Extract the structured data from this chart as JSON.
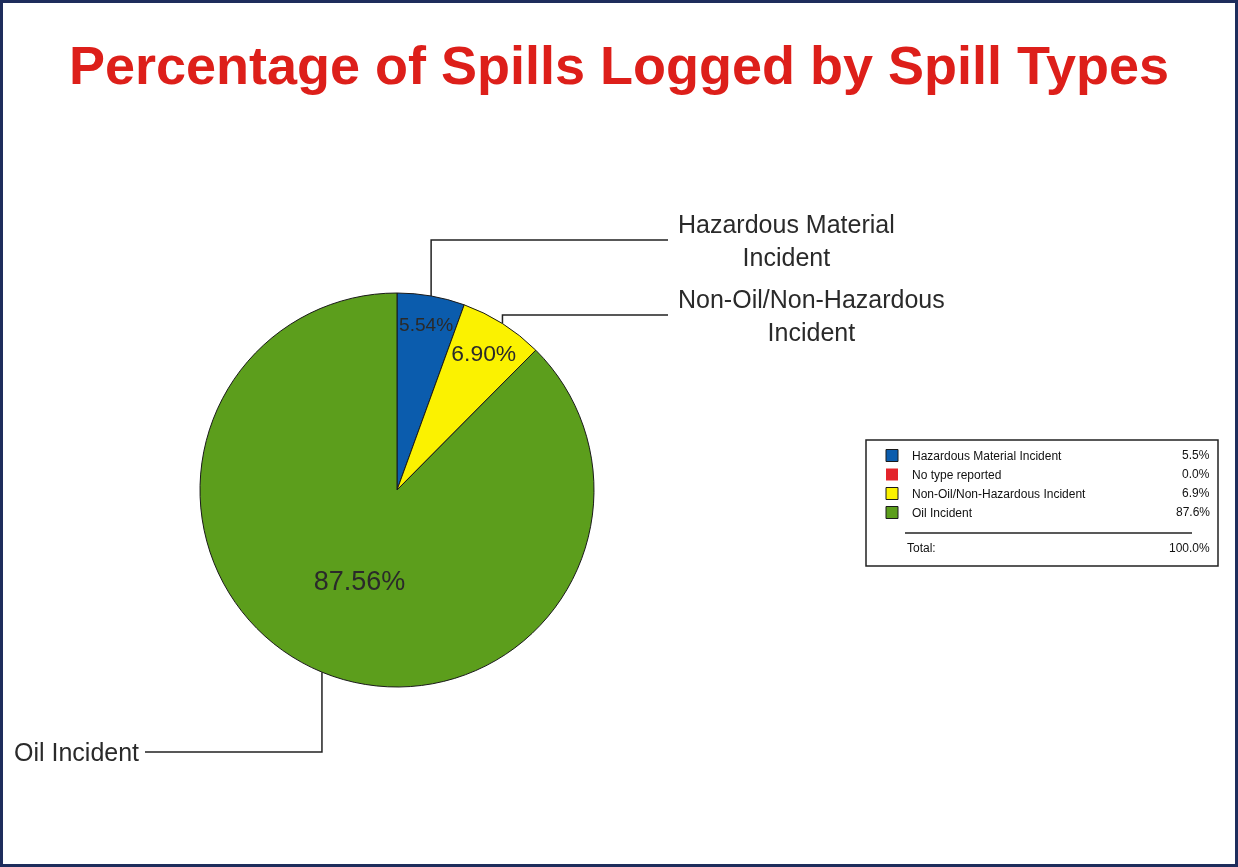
{
  "chart_data": {
    "type": "pie",
    "title": "Percentage of Spills Logged by Spill Types",
    "categories": [
      "Hazardous Material Incident",
      "No type reported",
      "Non-Oil/Non-Hazardous Incident",
      "Oil Incident"
    ],
    "values": [
      5.54,
      0,
      6.9,
      87.56
    ],
    "colors": [
      "#0b5cad",
      "#e3242b",
      "#fbf200",
      "#5c9e1c"
    ],
    "value_labels": [
      "5.54%",
      null,
      "6.90%",
      "87.56%"
    ],
    "legend": "right",
    "annotations": [
      "5.5%",
      "0.0%",
      "6.9%",
      "87.6%",
      "Total:",
      "100.0%"
    ]
  }
}
